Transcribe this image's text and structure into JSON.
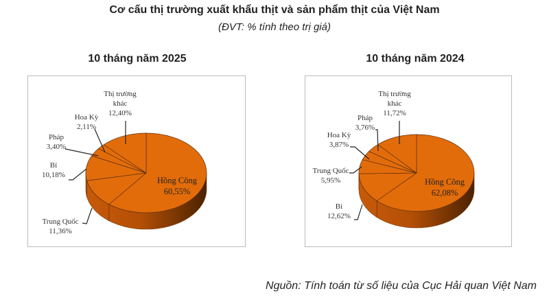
{
  "title": "Cơ cấu thị trường xuất khẩu thịt và sản phẩm thịt của Việt Nam",
  "subtitle": "(ĐVT: % tính theo trị giá)",
  "source": "Nguồn: Tính toán từ số liệu của Cục Hải quan Việt Nam",
  "colors": {
    "slice": "#E36C0A",
    "side_dark": "#5A2A00",
    "outline": "#7A3A05"
  },
  "chart_data": [
    {
      "type": "pie",
      "title": "10 tháng năm 2025",
      "slices": [
        {
          "name": "Hồng Công",
          "value": 60.55,
          "label": "60,55%"
        },
        {
          "name": "Trung Quốc",
          "value": 11.36,
          "label": "11,36%"
        },
        {
          "name": "Bỉ",
          "value": 10.18,
          "label": "10,18%"
        },
        {
          "name": "Pháp",
          "value": 3.4,
          "label": "3,40%"
        },
        {
          "name": "Hoa Kỳ",
          "value": 2.11,
          "label": "2,11%"
        },
        {
          "name": "Thị trường khác",
          "name_line1": "Thị trường",
          "name_line2": "khác",
          "value": 12.4,
          "label": "12,40%"
        }
      ]
    },
    {
      "type": "pie",
      "title": "10 tháng năm 2024",
      "slices": [
        {
          "name": "Hồng Công",
          "value": 62.08,
          "label": "62,08%"
        },
        {
          "name": "Bỉ",
          "value": 12.62,
          "label": "12,62%"
        },
        {
          "name": "Trung Quốc",
          "value": 5.95,
          "label": "5,95%"
        },
        {
          "name": "Hoa Kỳ",
          "value": 3.87,
          "label": "3,87%"
        },
        {
          "name": "Pháp",
          "value": 3.76,
          "label": "3,76%"
        },
        {
          "name": "Thị trường khác",
          "name_line1": "Thị trường",
          "name_line2": "khác",
          "value": 11.72,
          "label": "11,72%"
        }
      ]
    }
  ]
}
